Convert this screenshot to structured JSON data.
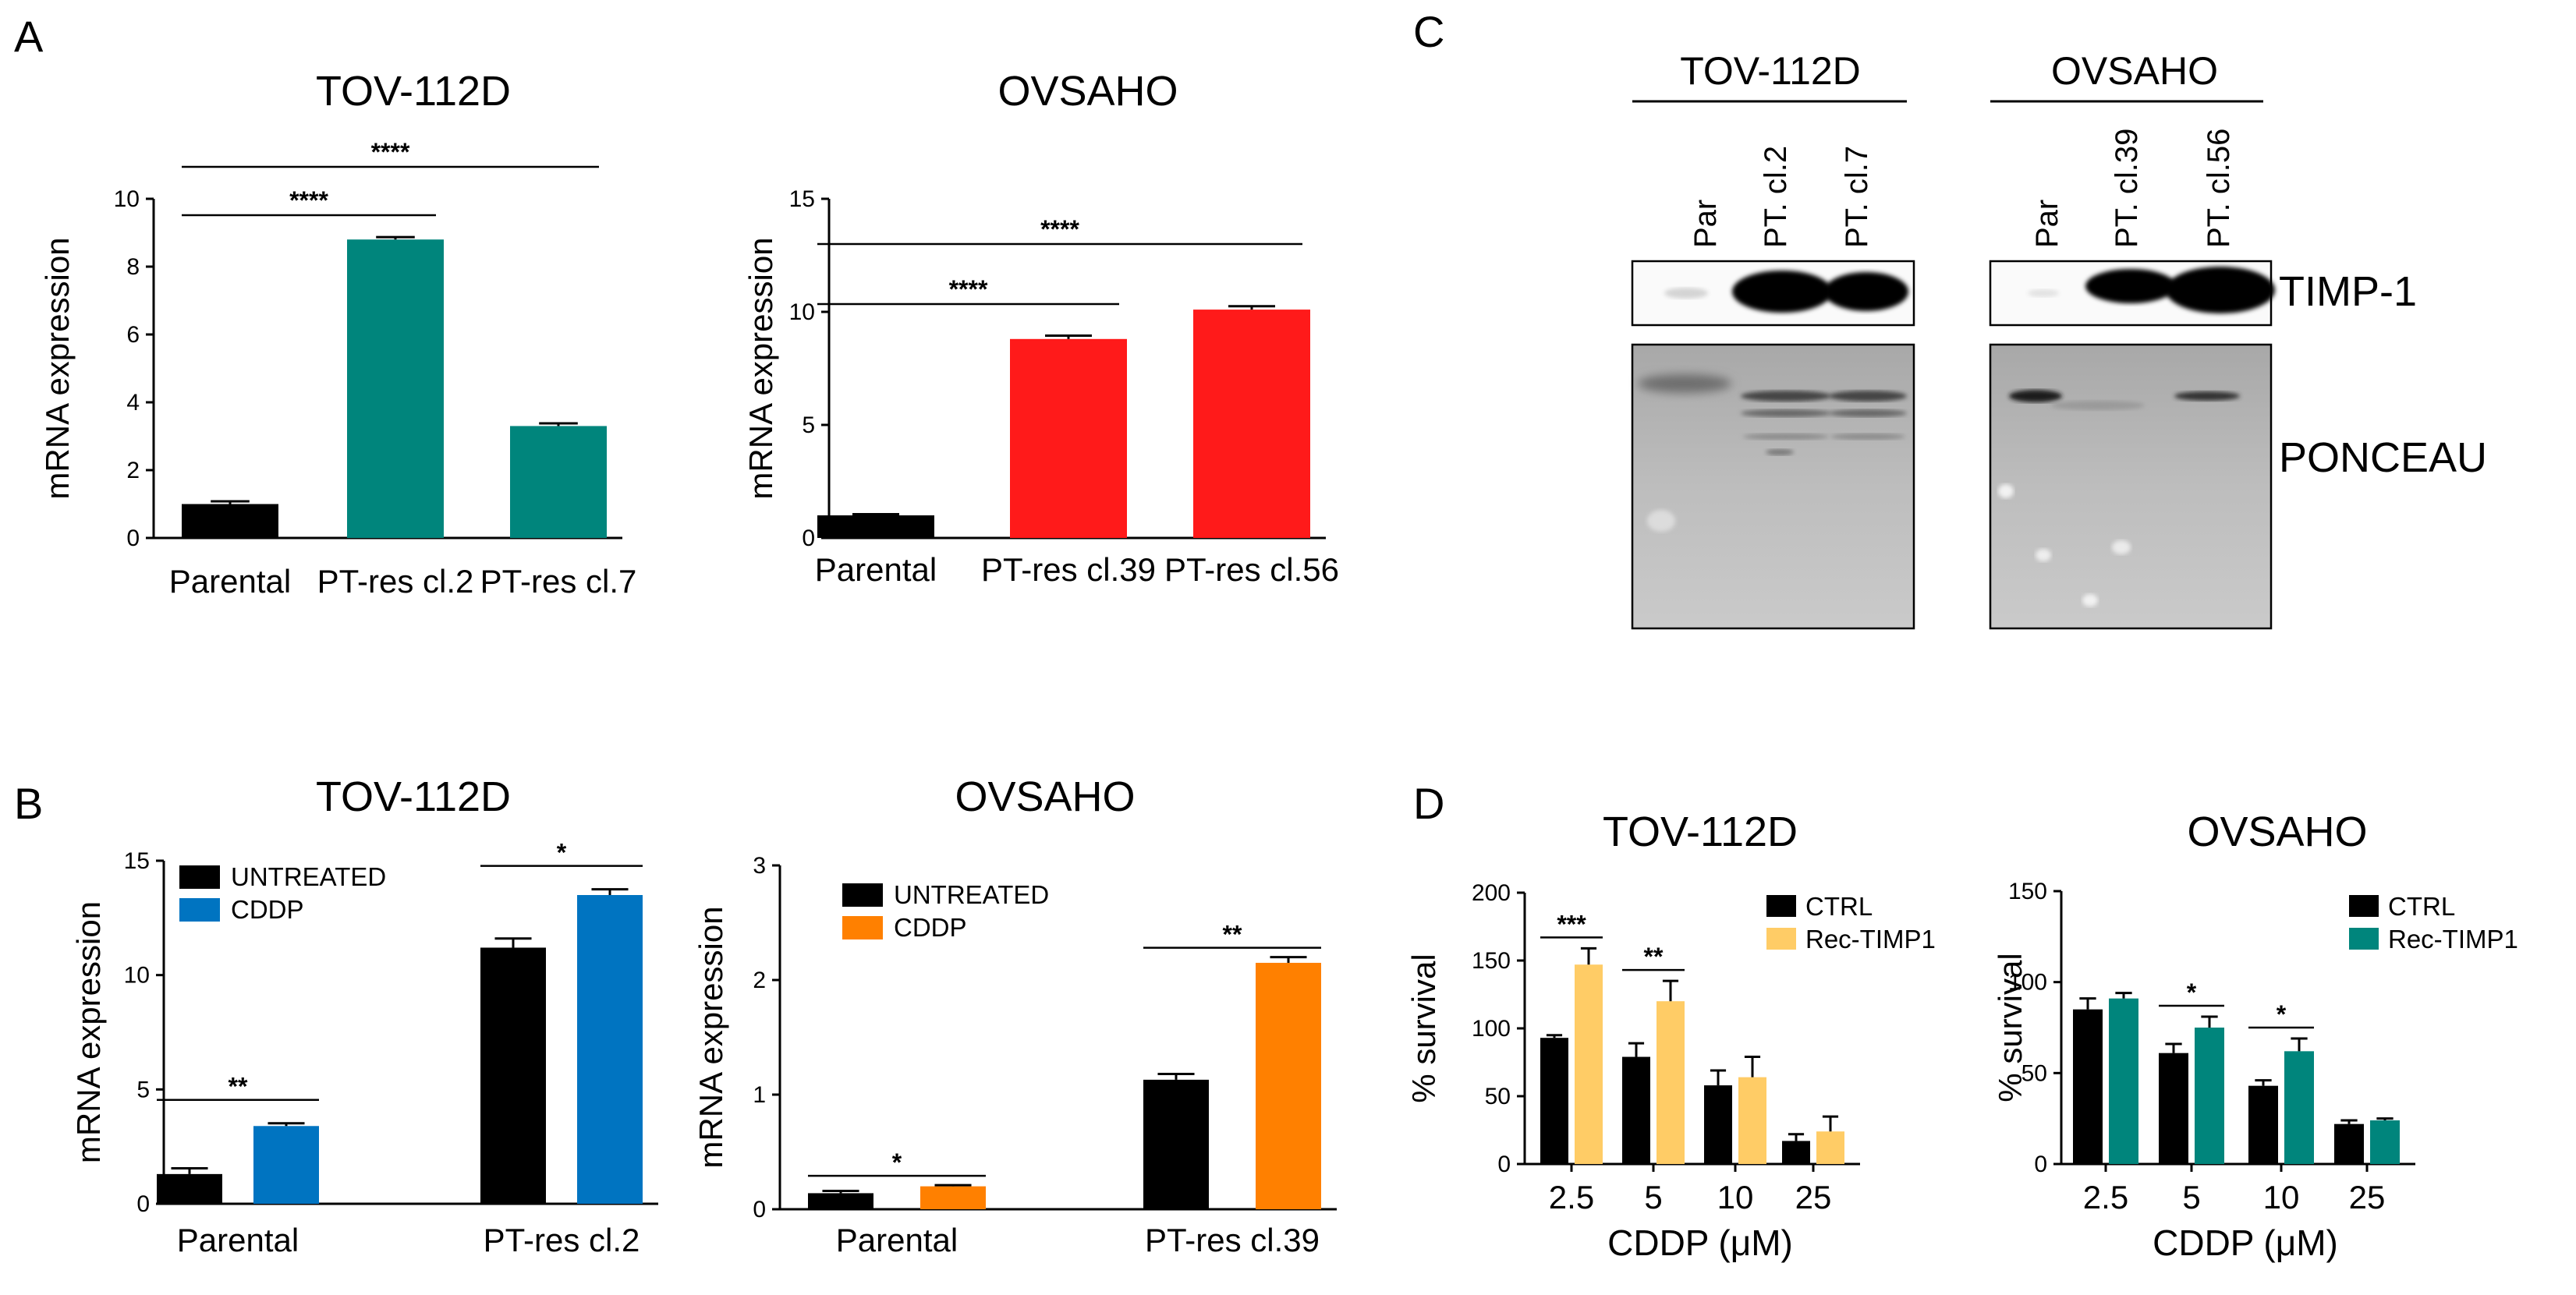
{
  "panels": {
    "A": "A",
    "B": "B",
    "C": "C",
    "D": "D"
  },
  "chart_data": [
    {
      "id": "A1",
      "panel": "A",
      "type": "bar",
      "title": "TOV-112D",
      "categories": [
        "Parental",
        "PT-res cl.2",
        "PT-res cl.7"
      ],
      "values": [
        1.0,
        8.8,
        3.3
      ],
      "errors": [
        0.08,
        0.07,
        0.08
      ],
      "colors": [
        "#000000",
        "#00857c",
        "#00857c"
      ],
      "ylabel": "mRNA expression",
      "xlabel": "",
      "ylim": [
        0,
        10
      ],
      "yticks": [
        0,
        2,
        4,
        6,
        8,
        10
      ],
      "significance": [
        {
          "from": 0,
          "to": 1,
          "label": "****",
          "level": 1
        },
        {
          "from": 0,
          "to": 2,
          "label": "****",
          "level": 2
        }
      ]
    },
    {
      "id": "A2",
      "panel": "A",
      "type": "bar",
      "title": "OVSAHO",
      "categories": [
        "Parental",
        "PT-res cl.39",
        "PT-res cl.56"
      ],
      "values": [
        1.0,
        8.8,
        10.1
      ],
      "errors": [
        0.05,
        0.15,
        0.15
      ],
      "colors": [
        "#000000",
        "#ff1a1a",
        "#ff1a1a"
      ],
      "ylabel": "mRNA expression",
      "xlabel": "",
      "ylim": [
        0,
        15
      ],
      "yticks": [
        0,
        5,
        10,
        15
      ],
      "significance": [
        {
          "from": 0,
          "to": 1,
          "label": "****",
          "level": 1
        },
        {
          "from": 0,
          "to": 2,
          "label": "****",
          "level": 2
        }
      ]
    },
    {
      "id": "B1",
      "panel": "B",
      "type": "grouped-bar",
      "title": "TOV-112D",
      "categories": [
        "Parental",
        "PT-res cl.2"
      ],
      "series": [
        {
          "name": "UNTREATED",
          "color": "#000000",
          "values": [
            1.3,
            11.2
          ],
          "errors": [
            0.25,
            0.4
          ]
        },
        {
          "name": "CDDP",
          "color": "#0074c1",
          "values": [
            3.4,
            13.5
          ],
          "errors": [
            0.12,
            0.25
          ]
        }
      ],
      "ylabel": "mRNA expression",
      "xlabel": "",
      "ylim": [
        0,
        15
      ],
      "yticks": [
        0,
        5,
        10,
        15
      ],
      "significance": [
        {
          "group": 0,
          "label": "**"
        },
        {
          "group": 1,
          "label": "*"
        }
      ]
    },
    {
      "id": "B2",
      "panel": "B",
      "type": "grouped-bar",
      "title": "OVSAHO",
      "categories": [
        "Parental",
        "PT-res cl.39"
      ],
      "series": [
        {
          "name": "UNTREATED",
          "color": "#000000",
          "values": [
            0.14,
            1.13
          ],
          "errors": [
            0.02,
            0.05
          ]
        },
        {
          "name": "CDDP",
          "color": "#ff8000",
          "values": [
            0.2,
            2.15
          ],
          "errors": [
            0.01,
            0.05
          ]
        }
      ],
      "ylabel": "mRNA expression",
      "xlabel": "",
      "ylim": [
        0,
        3
      ],
      "yticks": [
        0,
        1,
        2,
        3
      ],
      "significance": [
        {
          "group": 0,
          "label": "*"
        },
        {
          "group": 1,
          "label": "**"
        }
      ]
    },
    {
      "id": "D1",
      "panel": "D",
      "type": "grouped-bar",
      "title": "TOV-112D",
      "categories": [
        "2.5",
        "5",
        "10",
        "25"
      ],
      "series": [
        {
          "name": "CTRL",
          "color": "#000000",
          "values": [
            93,
            79,
            58,
            17
          ],
          "errors": [
            2,
            10,
            11,
            5
          ]
        },
        {
          "name": "Rec-TIMP1",
          "color": "#ffcc66",
          "values": [
            147,
            120,
            64,
            24
          ],
          "errors": [
            12,
            15,
            15,
            11
          ]
        }
      ],
      "ylabel": "% survival",
      "xlabel": "CDDP (μM)",
      "ylim": [
        0,
        200
      ],
      "yticks": [
        0,
        50,
        100,
        150,
        200
      ],
      "significance": [
        {
          "group": 0,
          "label": "***"
        },
        {
          "group": 1,
          "label": "**"
        }
      ]
    },
    {
      "id": "D2",
      "panel": "D",
      "type": "grouped-bar",
      "title": "OVSAHO",
      "categories": [
        "2.5",
        "5",
        "10",
        "25"
      ],
      "series": [
        {
          "name": "CTRL",
          "color": "#000000",
          "values": [
            85,
            61,
            43,
            22
          ],
          "errors": [
            6,
            5,
            3,
            2
          ]
        },
        {
          "name": "Rec-TIMP1",
          "color": "#00857c",
          "values": [
            91,
            75,
            62,
            24
          ],
          "errors": [
            3,
            6,
            7,
            1
          ]
        }
      ],
      "ylabel": "% survival",
      "xlabel": "CDDP (μM)",
      "ylim": [
        0,
        150
      ],
      "yticks": [
        0,
        50,
        100,
        150
      ],
      "significance": [
        {
          "group": 1,
          "label": "*"
        },
        {
          "group": 2,
          "label": "*"
        }
      ]
    }
  ],
  "western_blot": {
    "blots": [
      {
        "title": "TOV-112D",
        "lanes": [
          "Par",
          "PT. cl.2",
          "PT. cl.7"
        ]
      },
      {
        "title": "OVSAHO",
        "lanes": [
          "Par",
          "PT. cl.39",
          "PT. cl.56"
        ]
      }
    ],
    "labels": {
      "timp1": "TIMP-1",
      "ponceau": "PONCEAU"
    }
  }
}
